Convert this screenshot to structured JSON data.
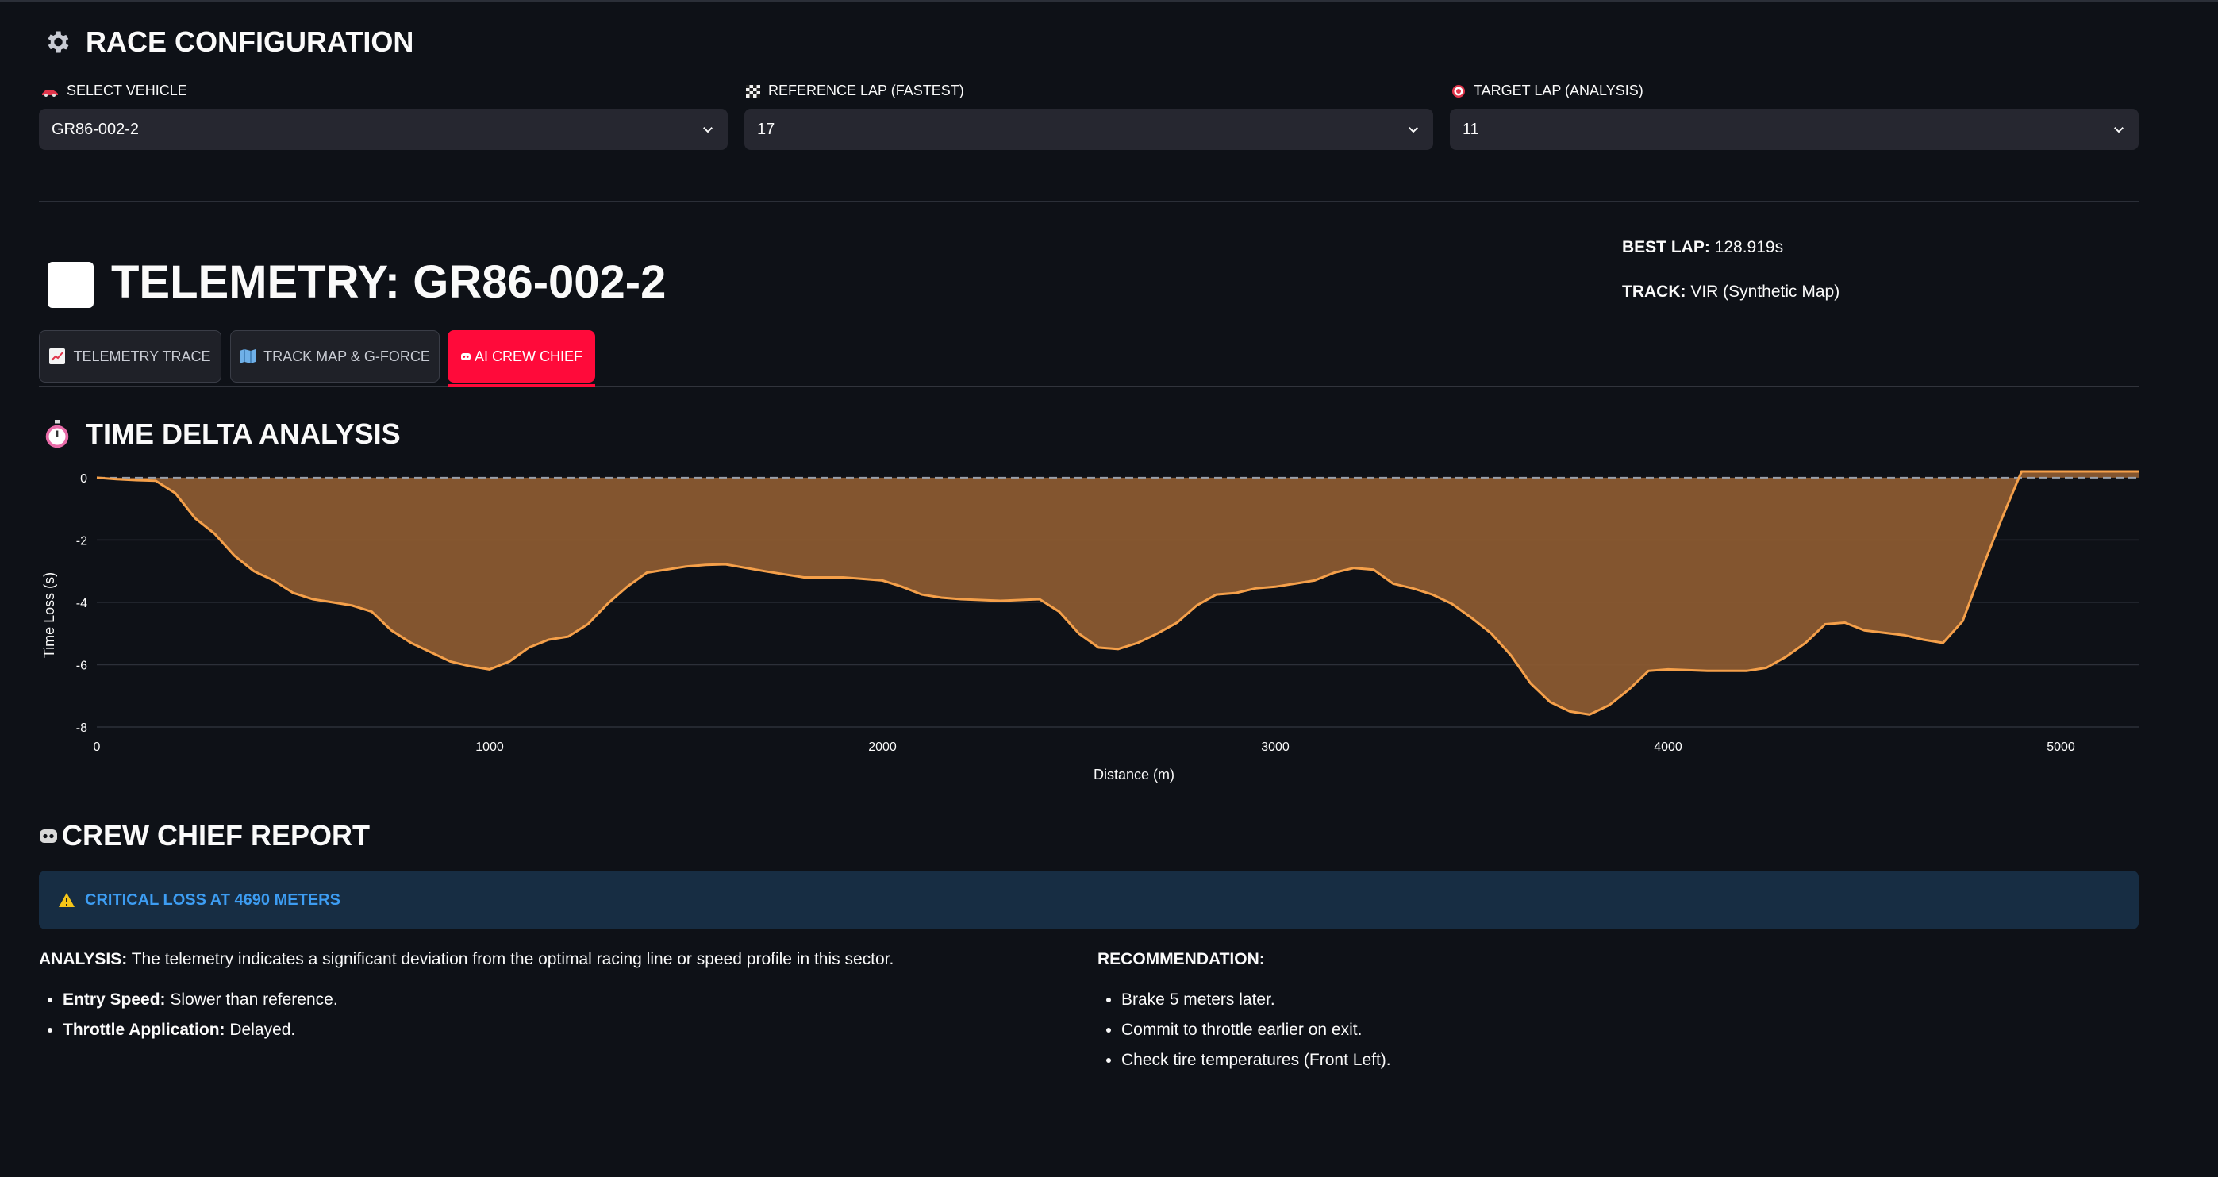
{
  "config": {
    "title": "RACE CONFIGURATION",
    "vehicle": {
      "label": "SELECT VEHICLE",
      "value": "GR86-002-2"
    },
    "reference_lap": {
      "label": "REFERENCE LAP (FASTEST)",
      "value": "17"
    },
    "target_lap": {
      "label": "TARGET LAP (ANALYSIS)",
      "value": "11"
    }
  },
  "telemetry": {
    "title": "TELEMETRY: GR86-002-2",
    "best_lap_label": "BEST LAP:",
    "best_lap_value": "128.919s",
    "track_label": "TRACK:",
    "track_value": "VIR (Synthetic Map)"
  },
  "tabs": [
    {
      "label": "TELEMETRY TRACE",
      "icon": "chart-increasing-icon",
      "active": false
    },
    {
      "label": "TRACK MAP & G-FORCE",
      "icon": "map-icon",
      "active": false
    },
    {
      "label": "AI CREW CHIEF",
      "icon": "robot-icon",
      "active": true
    }
  ],
  "delta": {
    "title": "TIME DELTA ANALYSIS"
  },
  "chart_data": {
    "type": "area",
    "title": "",
    "xlabel": "Distance (m)",
    "ylabel": "Time Loss (s)",
    "xlim": [
      0,
      5200
    ],
    "ylim": [
      -8,
      0.2
    ],
    "xticks": [
      0,
      1000,
      2000,
      3000,
      4000,
      5000
    ],
    "yticks": [
      0,
      -2,
      -4,
      -6,
      -8
    ],
    "grid": true,
    "reference_line": 0,
    "colors": {
      "line": "#f5a04a",
      "fill": "#8a5a30"
    },
    "x": [
      0,
      50,
      100,
      150,
      200,
      250,
      300,
      350,
      400,
      450,
      500,
      550,
      600,
      650,
      700,
      750,
      800,
      850,
      900,
      950,
      1000,
      1050,
      1100,
      1150,
      1200,
      1250,
      1300,
      1350,
      1400,
      1450,
      1500,
      1550,
      1600,
      1700,
      1800,
      1900,
      2000,
      2050,
      2100,
      2150,
      2200,
      2300,
      2400,
      2450,
      2500,
      2550,
      2600,
      2650,
      2700,
      2750,
      2800,
      2850,
      2900,
      2950,
      3000,
      3050,
      3100,
      3150,
      3200,
      3250,
      3300,
      3350,
      3400,
      3450,
      3500,
      3550,
      3600,
      3650,
      3700,
      3750,
      3800,
      3850,
      3900,
      3950,
      4000,
      4100,
      4200,
      4250,
      4300,
      4350,
      4400,
      4450,
      4500,
      4600,
      4650,
      4700,
      4750,
      4800,
      4850,
      4900,
      5000,
      5200
    ],
    "values": [
      0,
      -0.05,
      -0.08,
      -0.1,
      -0.5,
      -1.3,
      -1.8,
      -2.5,
      -3.0,
      -3.3,
      -3.7,
      -3.9,
      -4.0,
      -4.1,
      -4.3,
      -4.9,
      -5.3,
      -5.6,
      -5.9,
      -6.05,
      -6.15,
      -5.9,
      -5.45,
      -5.2,
      -5.1,
      -4.7,
      -4.05,
      -3.5,
      -3.05,
      -2.95,
      -2.85,
      -2.8,
      -2.78,
      -3.0,
      -3.2,
      -3.2,
      -3.3,
      -3.5,
      -3.75,
      -3.85,
      -3.9,
      -3.95,
      -3.9,
      -4.3,
      -5.0,
      -5.45,
      -5.5,
      -5.3,
      -5.0,
      -4.65,
      -4.1,
      -3.75,
      -3.7,
      -3.55,
      -3.5,
      -3.4,
      -3.3,
      -3.05,
      -2.9,
      -2.95,
      -3.4,
      -3.55,
      -3.75,
      -4.05,
      -4.5,
      -5.0,
      -5.7,
      -6.6,
      -7.2,
      -7.5,
      -7.6,
      -7.3,
      -6.8,
      -6.2,
      -6.15,
      -6.2,
      -6.2,
      -6.1,
      -5.75,
      -5.3,
      -4.7,
      -4.65,
      -4.9,
      -5.05,
      -5.2,
      -5.3,
      -4.6,
      -2.9,
      -1.3,
      0.2,
      0.2,
      0.2
    ]
  },
  "report": {
    "title": "CREW CHIEF REPORT",
    "alert": "CRITICAL LOSS AT 4690 METERS",
    "analysis_label": "ANALYSIS:",
    "analysis_text": " The telemetry indicates a significant deviation from the optimal racing line or speed profile in this sector.",
    "analysis_items": [
      {
        "label": "Entry Speed:",
        "text": " Slower than reference."
      },
      {
        "label": "Throttle Application:",
        "text": " Delayed."
      }
    ],
    "recommendation_label": "RECOMMENDATION:",
    "recommendations": [
      "Brake 5 meters later.",
      "Commit to throttle earlier on exit.",
      "Check tire temperatures (Front Left)."
    ]
  }
}
